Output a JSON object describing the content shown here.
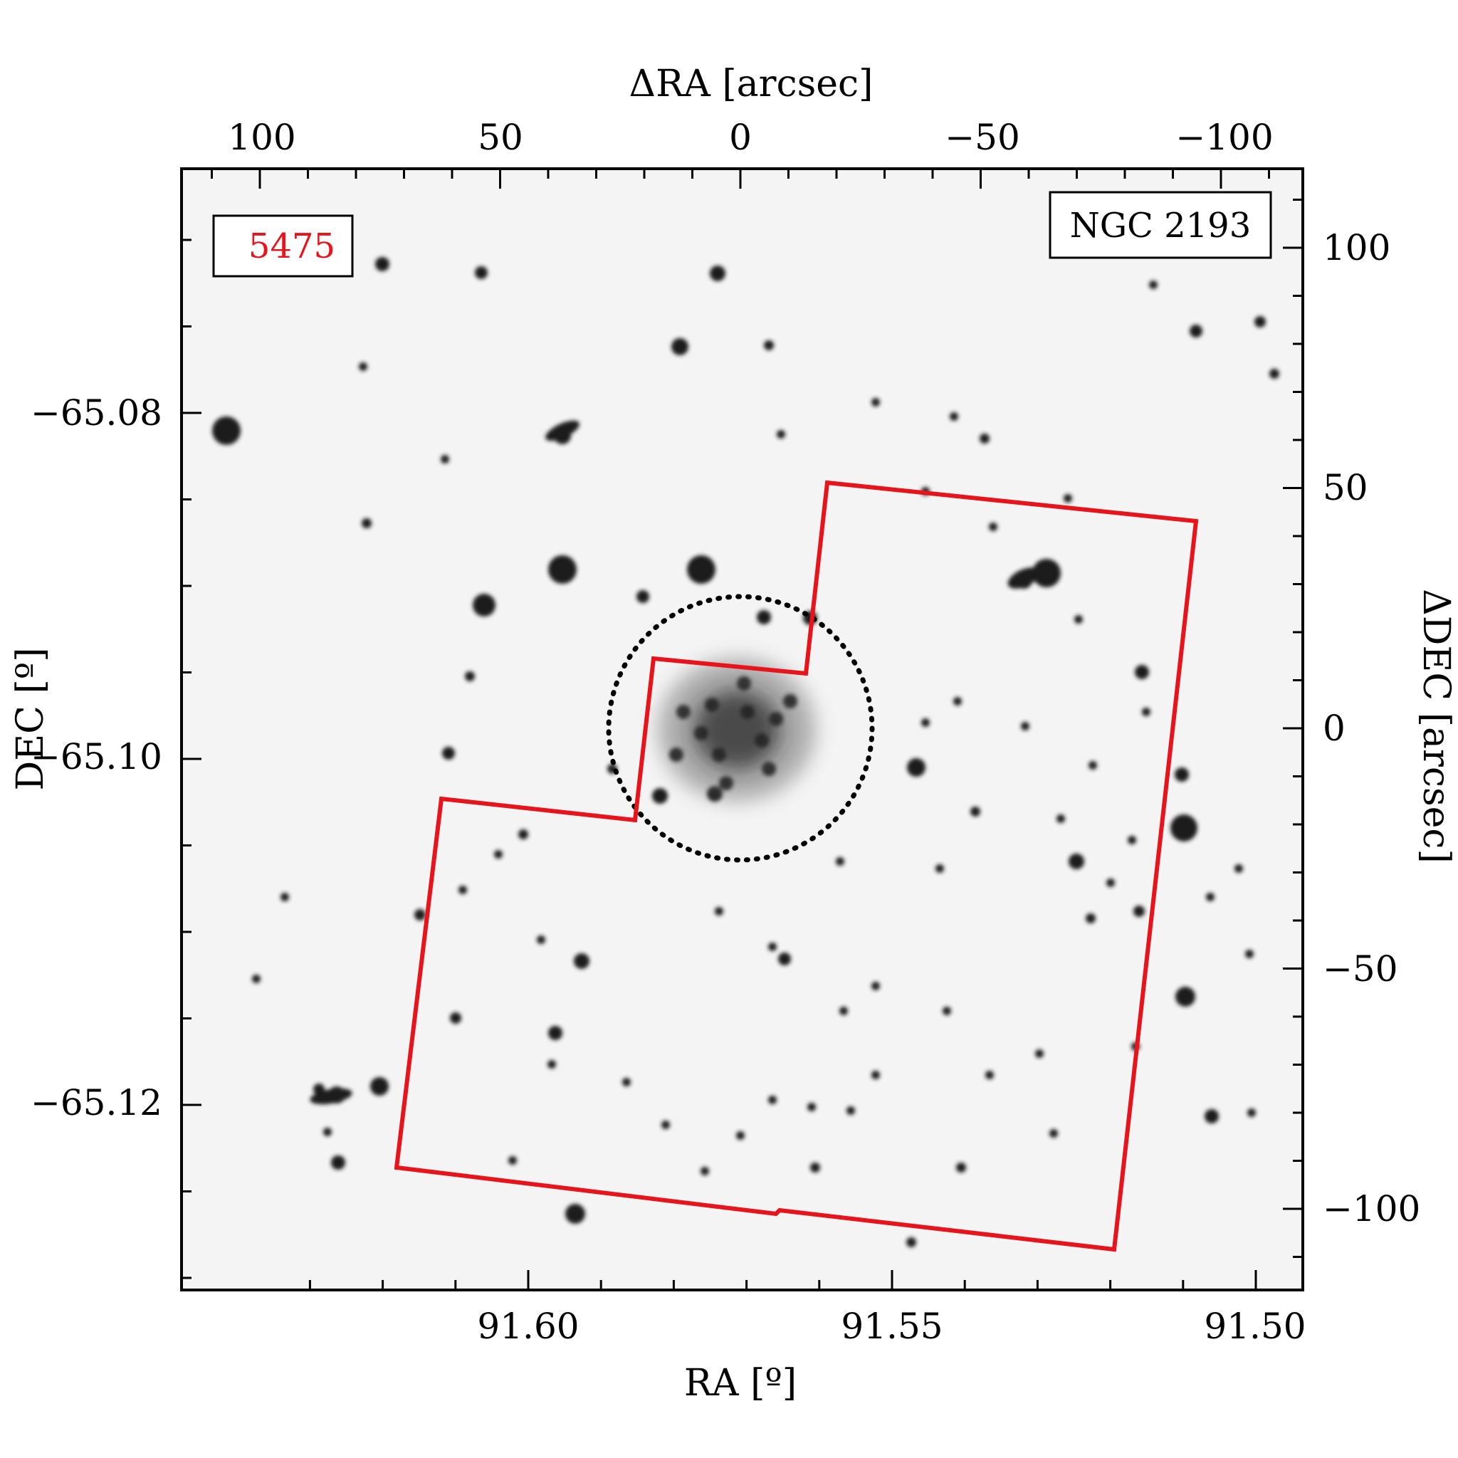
{
  "figure": {
    "field_id": "5475",
    "cluster_name": "NGC 2193",
    "field_id_color": "#e8141b",
    "footprint_color": "#e8141b",
    "circle_color": "#000000",
    "background_color": "#f4f4f4",
    "star_color": "#1a1a1a"
  },
  "axes": {
    "bottom": {
      "label": "RA [º]",
      "ticks": [
        "91.60",
        "91.55",
        "91.50"
      ]
    },
    "left": {
      "label": "DEC [º]",
      "ticks": [
        "−65.08",
        "−65.10",
        "−65.12"
      ]
    },
    "top": {
      "label": "ΔRA [arcsec]",
      "ticks": [
        "100",
        "50",
        "0",
        "−50",
        "−100"
      ]
    },
    "right": {
      "label": "ΔDEC [arcsec]",
      "ticks": [
        "100",
        "50",
        "0",
        "−50",
        "−100"
      ]
    }
  }
}
